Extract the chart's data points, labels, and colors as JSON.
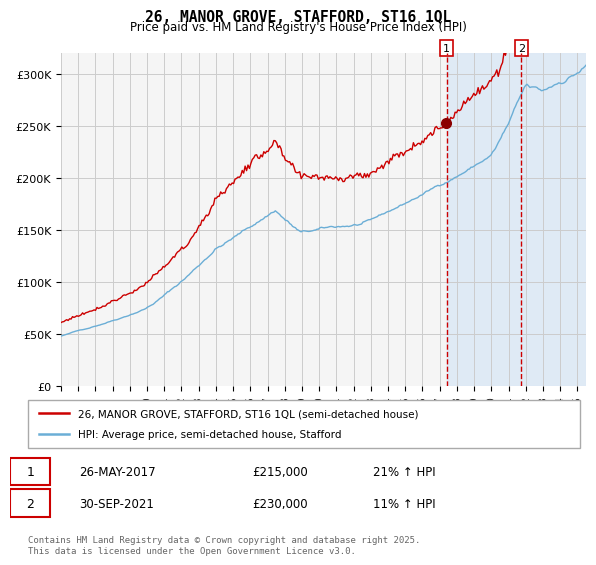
{
  "title": "26, MANOR GROVE, STAFFORD, ST16 1QL",
  "subtitle": "Price paid vs. HM Land Registry's House Price Index (HPI)",
  "legend_line1": "26, MANOR GROVE, STAFFORD, ST16 1QL (semi-detached house)",
  "legend_line2": "HPI: Average price, semi-detached house, Stafford",
  "sale1_date": "26-MAY-2017",
  "sale1_price": "£215,000",
  "sale1_hpi": "21% ↑ HPI",
  "sale1_year": 2017.4,
  "sale2_date": "30-SEP-2021",
  "sale2_price": "£230,000",
  "sale2_hpi": "11% ↑ HPI",
  "sale2_year": 2021.75,
  "hpi_color": "#6baed6",
  "price_color": "#cc0000",
  "marker_color": "#8b0000",
  "vline_color": "#cc0000",
  "highlight_color": "#dce9f5",
  "grid_color": "#cccccc",
  "bg_color": "#f5f5f5",
  "ylim": [
    0,
    320000
  ],
  "yticks": [
    0,
    50000,
    100000,
    150000,
    200000,
    250000,
    300000
  ],
  "ytick_labels": [
    "£0",
    "£50K",
    "£100K",
    "£150K",
    "£200K",
    "£250K",
    "£300K"
  ],
  "footer": "Contains HM Land Registry data © Crown copyright and database right 2025.\nThis data is licensed under the Open Government Licence v3.0."
}
